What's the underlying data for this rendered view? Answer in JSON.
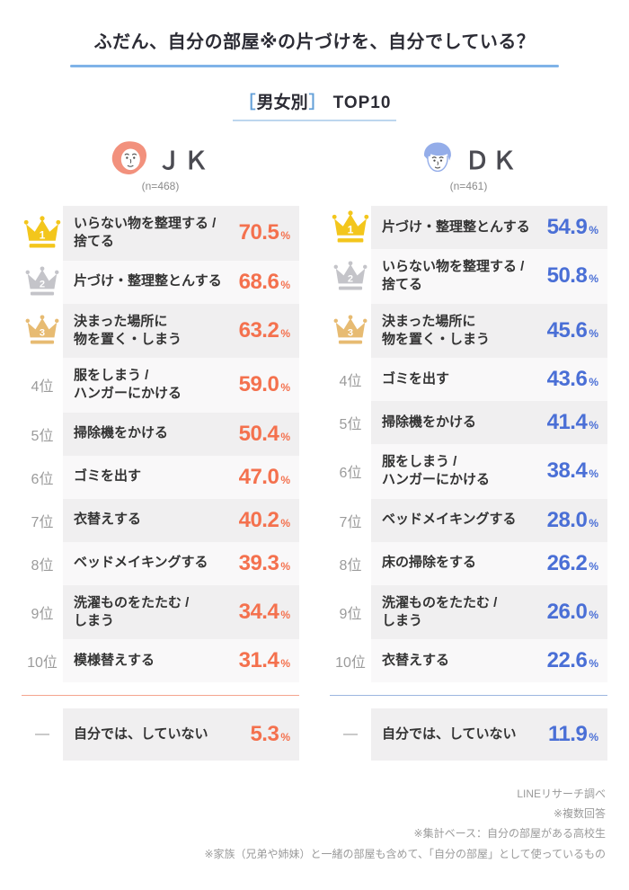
{
  "title": "ふだん、自分の部屋※の片づけを、自分でしている？",
  "subtitle": {
    "open_bracket": "［",
    "label": "男女別",
    "close_bracket": "］",
    "suffix": "TOP10"
  },
  "unit": "%",
  "colors": {
    "title_underline": "#7fb3e8",
    "bracket_blue": "#64a0d8",
    "crown_gold": "#f3c61c",
    "crown_silver": "#c4c4c9",
    "crown_bronze": "#e7bb72",
    "jk_accent": "#f4714e",
    "dk_accent": "#4a6fd6",
    "jk_divider": "#f5a58f",
    "dk_divider": "#9db6e0",
    "row_gray": "#f0eff0",
    "row_light": "#f9f8f9"
  },
  "columns": [
    {
      "id": "jk",
      "name": "ＪＫ",
      "n_label": "(n=468)",
      "icon": "girl-face-icon",
      "accent": "#f4714e",
      "divider_color": "#f5a58f",
      "rows": [
        {
          "rank": "1",
          "crown": "gold",
          "label": "いらない物を整理する /\n捨てる",
          "value": "70.5"
        },
        {
          "rank": "2",
          "crown": "silver",
          "label": "片づけ・整理整とんする",
          "value": "68.6"
        },
        {
          "rank": "3",
          "crown": "bronze",
          "label": "決まった場所に\n物を置く・しまう",
          "value": "63.2"
        },
        {
          "rank": "4位",
          "label": "服をしまう /\nハンガーにかける",
          "value": "59.0"
        },
        {
          "rank": "5位",
          "label": "掃除機をかける",
          "value": "50.4"
        },
        {
          "rank": "6位",
          "label": "ゴミを出す",
          "value": "47.0"
        },
        {
          "rank": "7位",
          "label": "衣替えする",
          "value": "40.2"
        },
        {
          "rank": "8位",
          "label": "ベッドメイキングする",
          "value": "39.3"
        },
        {
          "rank": "9位",
          "label": "洗濯ものをたたむ /\nしまう",
          "value": "34.4"
        },
        {
          "rank": "10位",
          "label": "模様替えする",
          "value": "31.4"
        }
      ],
      "extra": {
        "rank": "—",
        "label": "自分では、していない",
        "value": "5.3"
      }
    },
    {
      "id": "dk",
      "name": "ＤＫ",
      "n_label": "(n=461)",
      "icon": "boy-face-icon",
      "accent": "#4a6fd6",
      "divider_color": "#9db6e0",
      "rows": [
        {
          "rank": "1",
          "crown": "gold",
          "label": "片づけ・整理整とんする",
          "value": "54.9"
        },
        {
          "rank": "2",
          "crown": "silver",
          "label": "いらない物を整理する /\n捨てる",
          "value": "50.8"
        },
        {
          "rank": "3",
          "crown": "bronze",
          "label": "決まった場所に\n物を置く・しまう",
          "value": "45.6"
        },
        {
          "rank": "4位",
          "label": "ゴミを出す",
          "value": "43.6"
        },
        {
          "rank": "5位",
          "label": "掃除機をかける",
          "value": "41.4"
        },
        {
          "rank": "6位",
          "label": "服をしまう /\nハンガーにかける",
          "value": "38.4"
        },
        {
          "rank": "7位",
          "label": "ベッドメイキングする",
          "value": "28.0"
        },
        {
          "rank": "8位",
          "label": "床の掃除をする",
          "value": "26.2"
        },
        {
          "rank": "9位",
          "label": "洗濯ものをたたむ /\nしまう",
          "value": "26.0"
        },
        {
          "rank": "10位",
          "label": "衣替えする",
          "value": "22.6"
        }
      ],
      "extra": {
        "rank": "—",
        "label": "自分では、していない",
        "value": "11.9"
      }
    }
  ],
  "footnotes": [
    "LINEリサーチ調べ",
    "※複数回答",
    "※集計ベース：自分の部屋がある高校生",
    "※家族（兄弟や姉妹）と一緒の部屋も含めて、「自分の部屋」として使っているもの"
  ],
  "chart_data": {
    "type": "table",
    "title": "ふだん、自分の部屋※の片づけを、自分でしている？",
    "subtitle": "［男女別］TOP10",
    "unit": "%",
    "series": [
      {
        "name": "JK",
        "n": 468,
        "items": [
          {
            "rank": 1,
            "label": "いらない物を整理する / 捨てる",
            "value": 70.5
          },
          {
            "rank": 2,
            "label": "片づけ・整理整とんする",
            "value": 68.6
          },
          {
            "rank": 3,
            "label": "決まった場所に物を置く・しまう",
            "value": 63.2
          },
          {
            "rank": 4,
            "label": "服をしまう / ハンガーにかける",
            "value": 59.0
          },
          {
            "rank": 5,
            "label": "掃除機をかける",
            "value": 50.4
          },
          {
            "rank": 6,
            "label": "ゴミを出す",
            "value": 47.0
          },
          {
            "rank": 7,
            "label": "衣替えする",
            "value": 40.2
          },
          {
            "rank": 8,
            "label": "ベッドメイキングする",
            "value": 39.3
          },
          {
            "rank": 9,
            "label": "洗濯ものをたたむ / しまう",
            "value": 34.4
          },
          {
            "rank": 10,
            "label": "模様替えする",
            "value": 31.4
          },
          {
            "rank": null,
            "label": "自分では、していない",
            "value": 5.3
          }
        ]
      },
      {
        "name": "DK",
        "n": 461,
        "items": [
          {
            "rank": 1,
            "label": "片づけ・整理整とんする",
            "value": 54.9
          },
          {
            "rank": 2,
            "label": "いらない物を整理する / 捨てる",
            "value": 50.8
          },
          {
            "rank": 3,
            "label": "決まった場所に物を置く・しまう",
            "value": 45.6
          },
          {
            "rank": 4,
            "label": "ゴミを出す",
            "value": 43.6
          },
          {
            "rank": 5,
            "label": "掃除機をかける",
            "value": 41.4
          },
          {
            "rank": 6,
            "label": "服をしまう / ハンガーにかける",
            "value": 38.4
          },
          {
            "rank": 7,
            "label": "ベッドメイキングする",
            "value": 28.0
          },
          {
            "rank": 8,
            "label": "床の掃除をする",
            "value": 26.2
          },
          {
            "rank": 9,
            "label": "洗濯ものをたたむ / しまう",
            "value": 26.0
          },
          {
            "rank": 10,
            "label": "衣替えする",
            "value": 22.6
          },
          {
            "rank": null,
            "label": "自分では、していない",
            "value": 11.9
          }
        ]
      }
    ]
  }
}
